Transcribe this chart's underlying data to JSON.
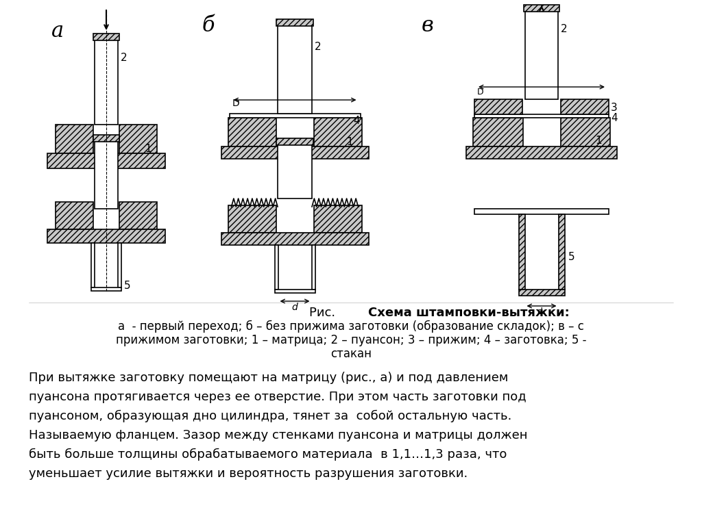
{
  "bg_color": "#ffffff",
  "caption_rис": "Рис.",
  "caption_bold": "Схема штамповки-вытяжки:",
  "caption_line2": "а  - первый переход; б – без прижима заготовки (образование складок); в – с",
  "caption_line3": "прижимом заготовки; 1 – матрица; 2 – пуансон; 3 – прижим; 4 – заготовка; 5 -",
  "caption_line4": "стакан",
  "body_lines": [
    "При вытяжке заготовку помещают на матрицу (рис., а) и под давлением",
    "пуансона протягивается через ее отверстие. При этом часть заготовки под",
    "пуансоном, образующая дно цилиндра, тянет за  собой остальную часть.",
    "Называемую фланцем. Зазор между стенками пуансона и матрицы должен",
    "быть больше толщины обрабатываемого материала  в 1,1…1,3 раза, что",
    "уменьшает усилие вытяжки и вероятность разрушения заготовки."
  ],
  "hatch_color": "#aaaaaa",
  "line_color": "#000000"
}
